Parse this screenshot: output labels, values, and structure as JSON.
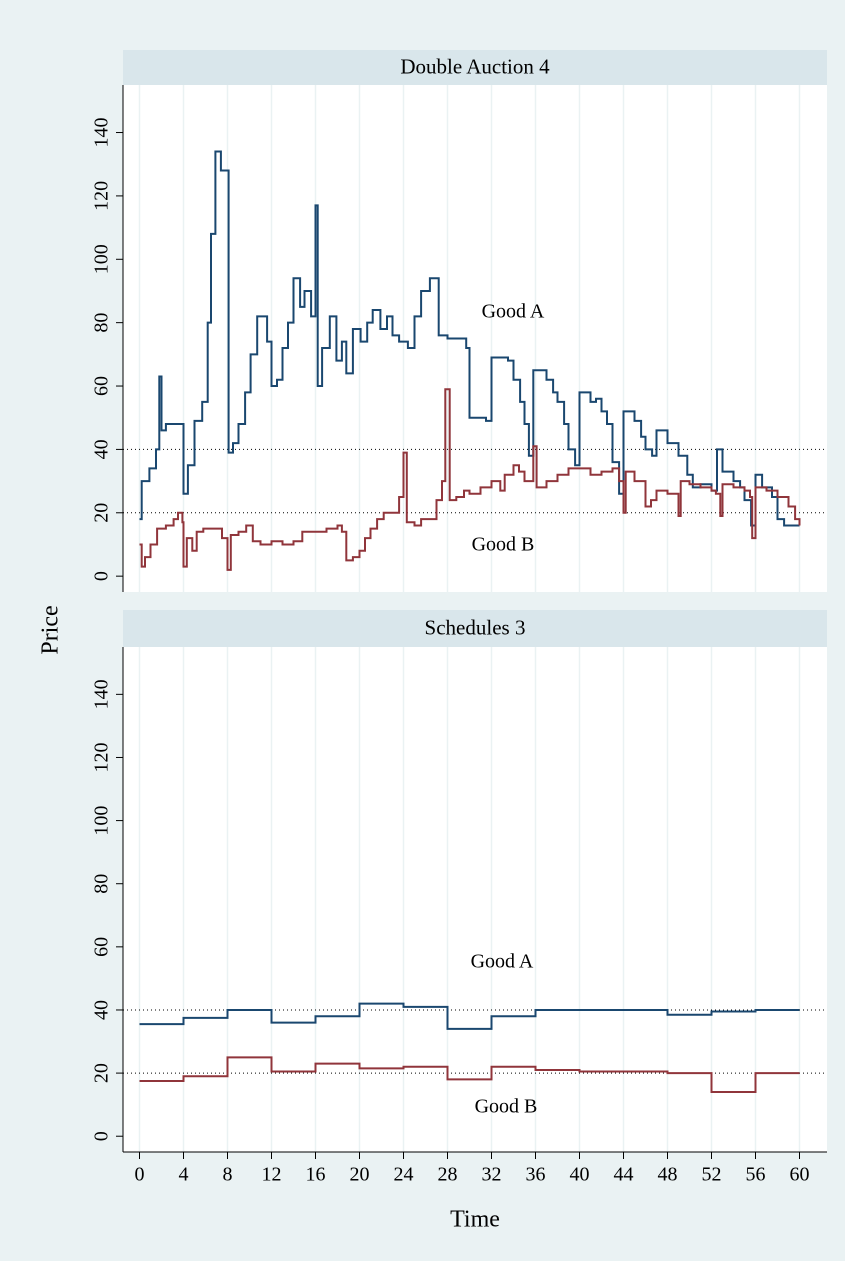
{
  "chart_data": [
    {
      "type": "line",
      "step": true,
      "title": "Double Auction 4",
      "ylabel": "Price",
      "xlim": [
        -1.5,
        62.5
      ],
      "ylim": [
        -5,
        155
      ],
      "xticks": [
        0,
        4,
        8,
        12,
        16,
        20,
        24,
        28,
        32,
        36,
        40,
        44,
        48,
        52,
        56,
        60
      ],
      "show_xtick_labels": false,
      "yticks": [
        0,
        20,
        40,
        60,
        80,
        100,
        120,
        140
      ],
      "grid": true,
      "reference_lines": [
        40,
        20
      ],
      "series": [
        {
          "name": "Good A",
          "color": "#1a476f",
          "x": [
            0,
            0.2,
            0.9,
            1.5,
            1.8,
            2,
            2.4,
            4,
            4.4,
            5,
            5.7,
            6.2,
            6.5,
            6.9,
            7.4,
            8.1,
            8.5,
            9,
            9.6,
            10.1,
            10.7,
            11.6,
            12,
            12.5,
            13,
            13.5,
            14,
            14.6,
            15,
            15.6,
            16,
            16.2,
            16.6,
            17.3,
            17.9,
            18.4,
            18.8,
            19.4,
            20.1,
            20.7,
            21.2,
            21.9,
            22.5,
            23,
            23.6,
            24.4,
            25,
            25.6,
            26.4,
            27.2,
            28,
            29.7,
            30,
            31.5,
            32,
            33.5,
            34,
            34.6,
            35,
            35.4,
            35.8,
            37,
            37.6,
            38,
            38.6,
            39,
            39.6,
            40,
            41,
            41.5,
            42,
            42.5,
            43,
            43.6,
            44,
            45,
            45.6,
            46,
            46.6,
            47,
            48,
            49,
            49.8,
            50.3,
            51,
            52,
            52.5,
            53,
            54,
            54.6,
            55,
            55.6,
            56,
            56.6,
            57.5,
            58,
            58.6,
            60
          ],
          "values": [
            18,
            30,
            34,
            40,
            63,
            46,
            48,
            26,
            35,
            49,
            55,
            80,
            108,
            134,
            128,
            39,
            42,
            48,
            58,
            70,
            82,
            74,
            60,
            62,
            72,
            80,
            94,
            85,
            90,
            82,
            117,
            60,
            72,
            82,
            68,
            74,
            64,
            78,
            74,
            80,
            84,
            78,
            82,
            76,
            74,
            72,
            82,
            90,
            94,
            76,
            75,
            72,
            50,
            49,
            69,
            68,
            62,
            55,
            48,
            38,
            65,
            62,
            58,
            55,
            48,
            40,
            35,
            58,
            55,
            56,
            52,
            48,
            36,
            26,
            52,
            49,
            44,
            40,
            38,
            46,
            42,
            38,
            32,
            28,
            29,
            27,
            40,
            33,
            30,
            28,
            24,
            16,
            32,
            28,
            25,
            18,
            16,
            16
          ]
        },
        {
          "name": "Good B",
          "color": "#90353b",
          "x": [
            0,
            0.2,
            0.5,
            1,
            1.6,
            2.4,
            3.1,
            3.5,
            3.9,
            4,
            4.3,
            4.8,
            5.2,
            5.8,
            6.5,
            7.5,
            8,
            8.3,
            9,
            9.7,
            10.3,
            11,
            12,
            13,
            14,
            14.8,
            16,
            17,
            18,
            18.4,
            18.8,
            19.4,
            20,
            20.5,
            21,
            21.6,
            22.2,
            23,
            23.6,
            24,
            24.3,
            25,
            25.6,
            26.2,
            27,
            27.5,
            27.8,
            28.2,
            28.8,
            29.5,
            30,
            31,
            32,
            32.8,
            33.2,
            34,
            34.5,
            35,
            35.8,
            36.1,
            37,
            38,
            39,
            40,
            41,
            42,
            43,
            43.6,
            44,
            44.2,
            45,
            46,
            46.5,
            47,
            48,
            49,
            49.2,
            50,
            51,
            52,
            52.4,
            52.8,
            53,
            54,
            55,
            55.5,
            55.7,
            56,
            57,
            58,
            59,
            59.6,
            60
          ],
          "values": [
            10,
            3,
            6,
            10,
            15,
            16,
            18,
            20,
            17,
            3,
            12,
            8,
            14,
            15,
            15,
            12,
            2,
            13,
            14,
            16,
            11,
            10,
            11,
            10,
            11,
            14,
            14,
            15,
            16,
            14,
            5,
            6,
            8,
            12,
            15,
            18,
            20,
            20,
            25,
            39,
            17,
            16,
            18,
            18,
            24,
            30,
            59,
            24,
            25,
            27,
            26,
            28,
            30,
            27,
            32,
            35,
            33,
            30,
            41,
            28,
            30,
            32,
            34,
            34,
            32,
            33,
            34,
            30,
            20,
            33,
            30,
            22,
            24,
            27,
            26,
            19,
            30,
            29,
            28,
            27,
            26,
            19,
            29,
            28,
            27,
            25,
            12,
            28,
            27,
            25,
            22,
            18,
            16
          ]
        }
      ]
    },
    {
      "type": "line",
      "step": true,
      "title": "Schedules 3",
      "xlabel": "Time",
      "xlim": [
        -1.5,
        62.5
      ],
      "ylim": [
        -5,
        155
      ],
      "xticks": [
        0,
        4,
        8,
        12,
        16,
        20,
        24,
        28,
        32,
        36,
        40,
        44,
        48,
        52,
        56,
        60
      ],
      "show_xtick_labels": true,
      "yticks": [
        0,
        20,
        40,
        60,
        80,
        100,
        120,
        140
      ],
      "grid": true,
      "reference_lines": [
        40,
        20
      ],
      "series": [
        {
          "name": "Good A",
          "color": "#1a476f",
          "x": [
            0,
            4,
            8,
            12,
            16,
            20,
            24,
            28,
            32,
            36,
            40,
            44,
            48,
            52,
            56,
            60
          ],
          "values": [
            35.5,
            37.5,
            40,
            36,
            38,
            42,
            41,
            34,
            38,
            40,
            40,
            40,
            38.5,
            39.5,
            40,
            40
          ]
        },
        {
          "name": "Good B",
          "color": "#90353b",
          "x": [
            0,
            4,
            8,
            12,
            16,
            20,
            24,
            28,
            32,
            36,
            40,
            44,
            48,
            52,
            56,
            60
          ],
          "values": [
            17.5,
            19,
            25,
            20.5,
            23,
            21.5,
            22,
            18,
            22,
            21,
            20.5,
            20.5,
            20,
            14,
            20,
            20
          ]
        }
      ]
    }
  ]
}
